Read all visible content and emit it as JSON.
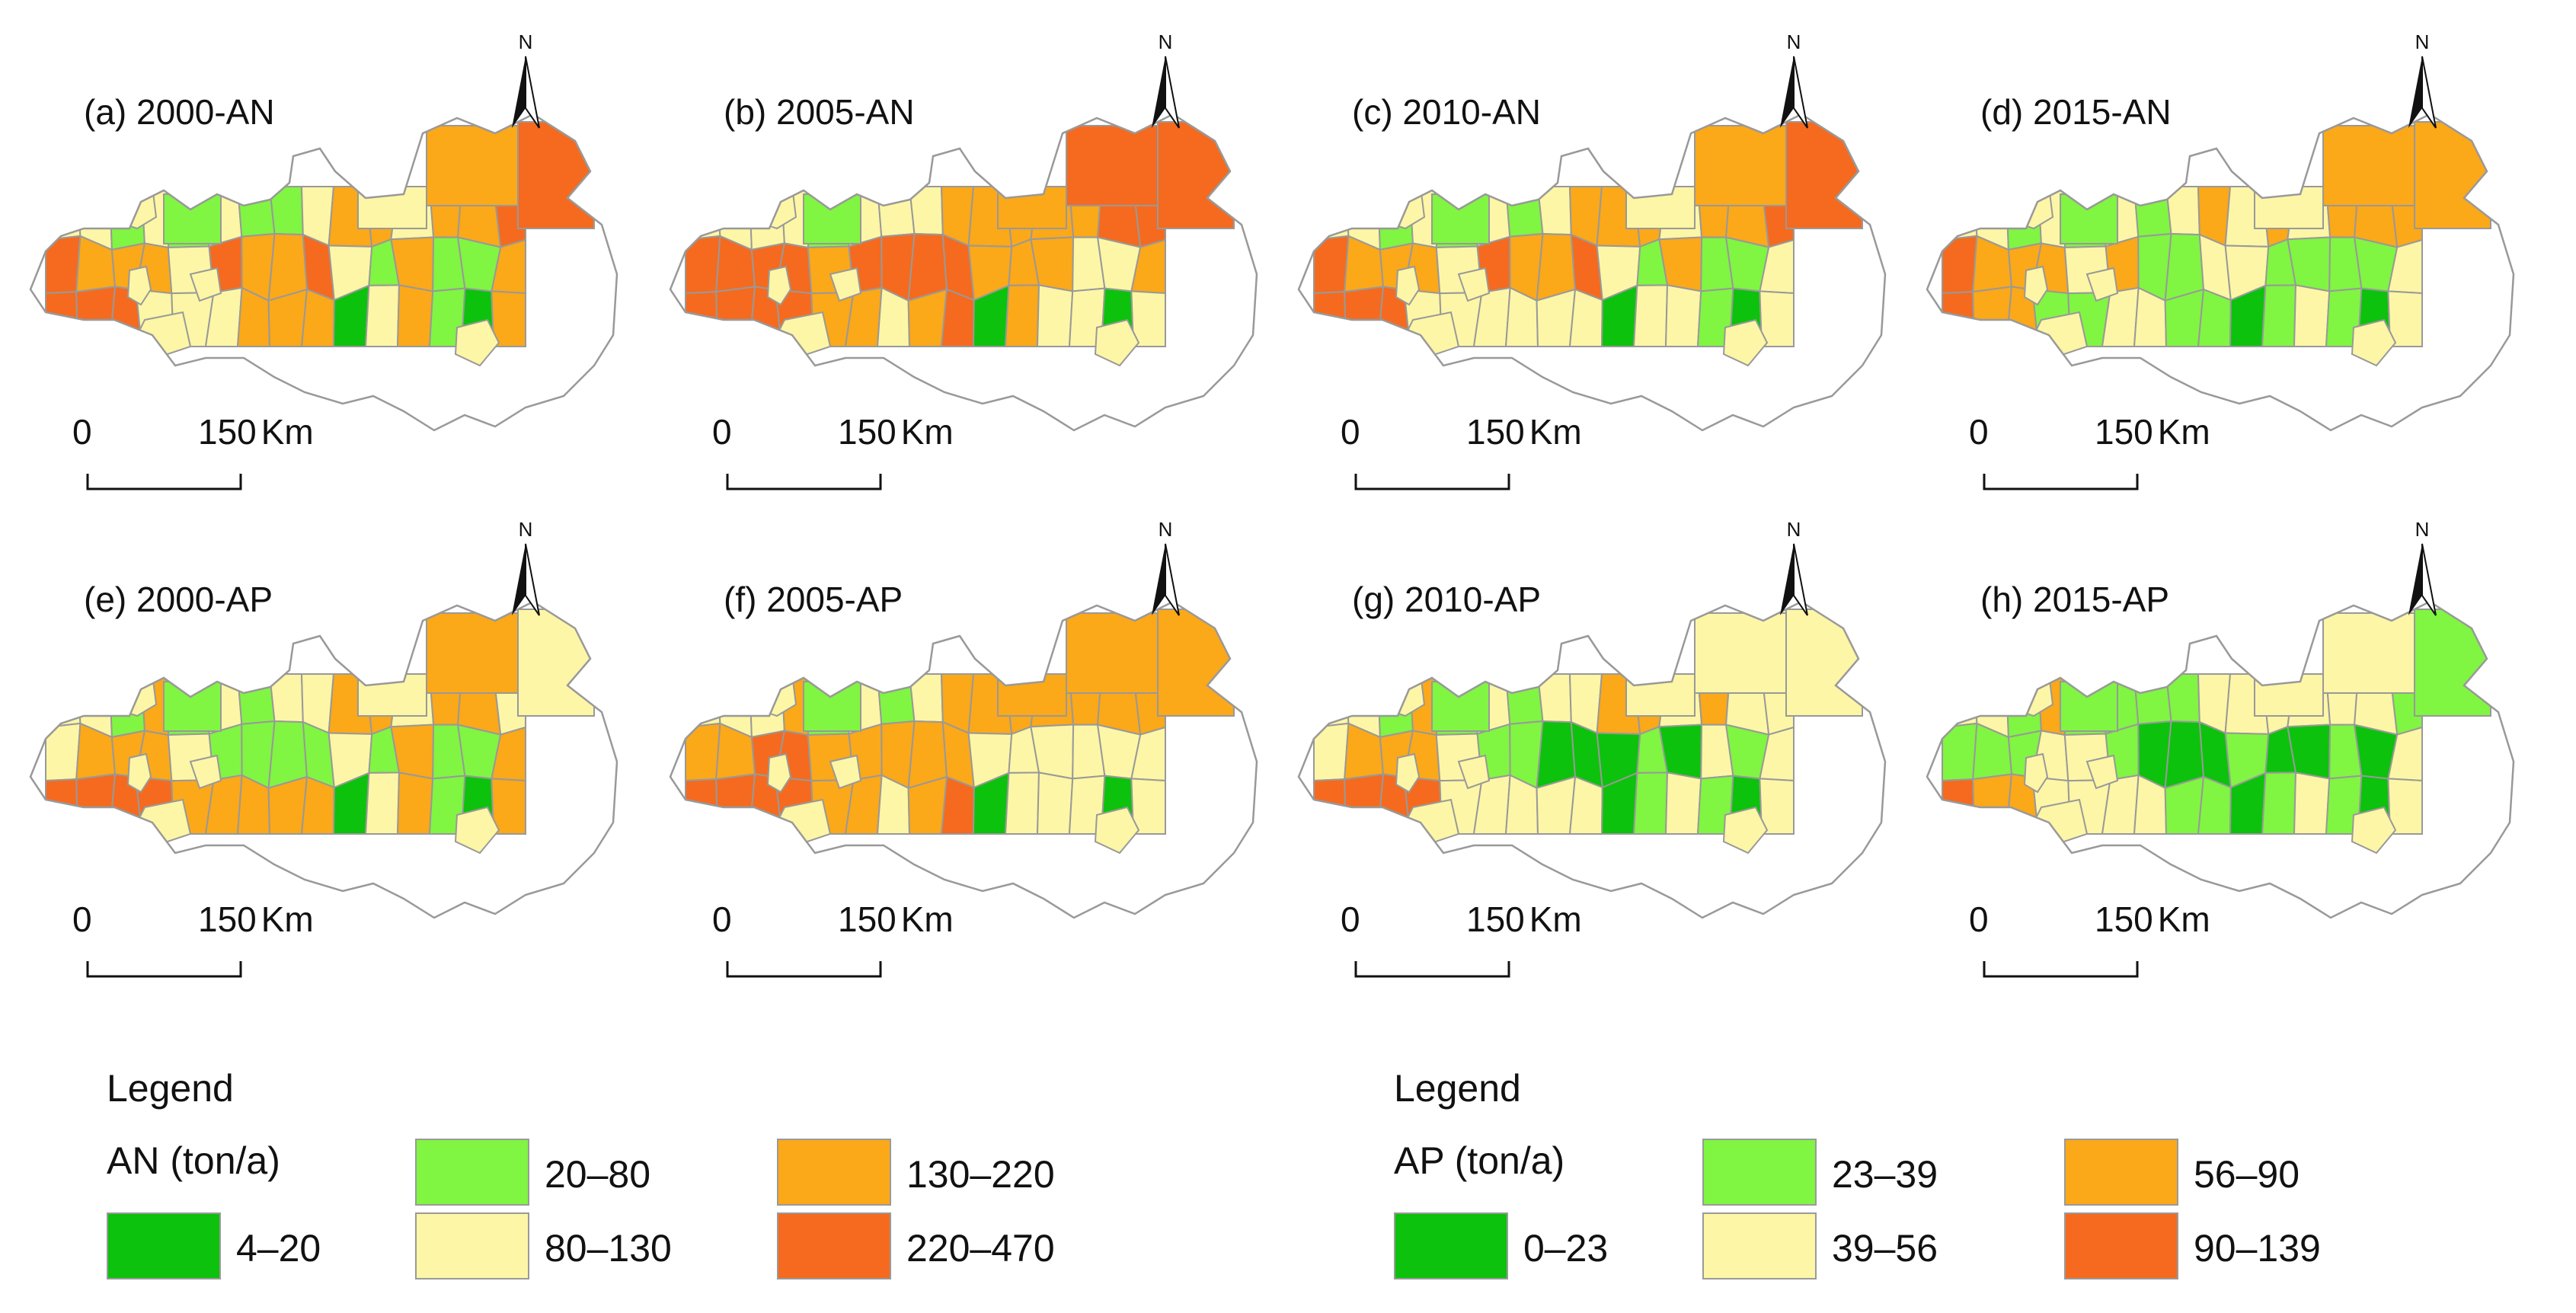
{
  "colors": {
    "c1": "#0cc20c",
    "c2": "#80f542",
    "c3": "#fdf6a6",
    "c4": "#fba819",
    "c5": "#f56a1e",
    "border": "#999999"
  },
  "panels": [
    {
      "id": "a",
      "title": "(a) 2000-AN",
      "classes": [
        3,
        3,
        2,
        3,
        2,
        3,
        2,
        2,
        3,
        4,
        4,
        3,
        4,
        4,
        5,
        5,
        4,
        4,
        4,
        3,
        5,
        4,
        4,
        5,
        3,
        2,
        4,
        2,
        2,
        4,
        5,
        5,
        5,
        3,
        3,
        3,
        4,
        4,
        4,
        1,
        3,
        4,
        2,
        1,
        4
      ]
    },
    {
      "id": "b",
      "title": "(b) 2005-AN",
      "classes": [
        3,
        3,
        3,
        3,
        2,
        3,
        3,
        3,
        4,
        4,
        4,
        4,
        4,
        5,
        5,
        5,
        5,
        5,
        5,
        4,
        5,
        5,
        5,
        5,
        4,
        4,
        4,
        3,
        3,
        4,
        5,
        5,
        5,
        5,
        4,
        4,
        3,
        4,
        5,
        1,
        4,
        3,
        3,
        1,
        3
      ]
    },
    {
      "id": "c",
      "title": "(c) 2010-AN",
      "classes": [
        3,
        3,
        2,
        3,
        2,
        3,
        2,
        3,
        4,
        4,
        4,
        3,
        4,
        4,
        5,
        5,
        4,
        4,
        4,
        3,
        5,
        4,
        4,
        5,
        3,
        2,
        4,
        2,
        2,
        3,
        5,
        5,
        5,
        3,
        3,
        3,
        3,
        3,
        3,
        1,
        3,
        3,
        2,
        1,
        3
      ]
    },
    {
      "id": "d",
      "title": "(d) 2015-AN",
      "classes": [
        3,
        3,
        2,
        3,
        2,
        3,
        2,
        3,
        4,
        3,
        4,
        3,
        4,
        4,
        4,
        5,
        4,
        4,
        4,
        3,
        4,
        2,
        2,
        3,
        3,
        2,
        2,
        2,
        2,
        3,
        5,
        4,
        4,
        2,
        2,
        3,
        3,
        2,
        2,
        1,
        2,
        3,
        2,
        1,
        3
      ]
    },
    {
      "id": "e",
      "title": "(e) 2000-AP",
      "classes": [
        3,
        3,
        2,
        4,
        2,
        3,
        2,
        3,
        3,
        4,
        4,
        3,
        4,
        4,
        3,
        3,
        4,
        4,
        4,
        3,
        2,
        2,
        2,
        2,
        3,
        2,
        4,
        2,
        2,
        4,
        5,
        5,
        5,
        5,
        4,
        4,
        4,
        4,
        4,
        1,
        3,
        4,
        2,
        1,
        4
      ]
    },
    {
      "id": "f",
      "title": "(f) 2005-AP",
      "classes": [
        3,
        3,
        3,
        4,
        2,
        3,
        2,
        3,
        4,
        4,
        4,
        4,
        4,
        4,
        4,
        4,
        4,
        5,
        5,
        4,
        4,
        4,
        4,
        4,
        3,
        3,
        3,
        3,
        3,
        3,
        5,
        5,
        5,
        5,
        4,
        4,
        3,
        4,
        5,
        1,
        3,
        3,
        3,
        1,
        3
      ]
    },
    {
      "id": "g",
      "title": "(g) 2010-AP",
      "classes": [
        3,
        3,
        2,
        4,
        2,
        3,
        2,
        3,
        3,
        4,
        4,
        3,
        4,
        3,
        3,
        3,
        4,
        4,
        4,
        3,
        2,
        2,
        1,
        1,
        1,
        2,
        1,
        3,
        2,
        3,
        5,
        5,
        5,
        5,
        3,
        3,
        3,
        3,
        3,
        1,
        2,
        3,
        2,
        1,
        3
      ]
    },
    {
      "id": "h",
      "title": "(h) 2015-AP",
      "classes": [
        3,
        3,
        2,
        4,
        2,
        2,
        2,
        2,
        3,
        3,
        3,
        3,
        3,
        3,
        2,
        2,
        2,
        2,
        3,
        3,
        2,
        1,
        1,
        1,
        2,
        1,
        1,
        2,
        1,
        3,
        5,
        4,
        4,
        3,
        3,
        3,
        3,
        2,
        2,
        1,
        2,
        3,
        2,
        1,
        3
      ]
    }
  ],
  "scalebar": {
    "zero": "0",
    "distance": "150",
    "unit": "Km"
  },
  "north_label": "N",
  "legend_an": {
    "title": "Legend",
    "unit": "AN (ton/a)",
    "items": [
      {
        "label": "4–20",
        "cls": 1
      },
      {
        "label": "20–80",
        "cls": 2
      },
      {
        "label": "80–130",
        "cls": 3
      },
      {
        "label": "130–220",
        "cls": 4
      },
      {
        "label": "220–470",
        "cls": 5
      }
    ]
  },
  "legend_ap": {
    "title": "Legend",
    "unit": "AP (ton/a)",
    "items": [
      {
        "label": "0–23",
        "cls": 1
      },
      {
        "label": "23–39",
        "cls": 2
      },
      {
        "label": "39–56",
        "cls": 3
      },
      {
        "label": "56–90",
        "cls": 4
      },
      {
        "label": "90–139",
        "cls": 5
      }
    ]
  }
}
